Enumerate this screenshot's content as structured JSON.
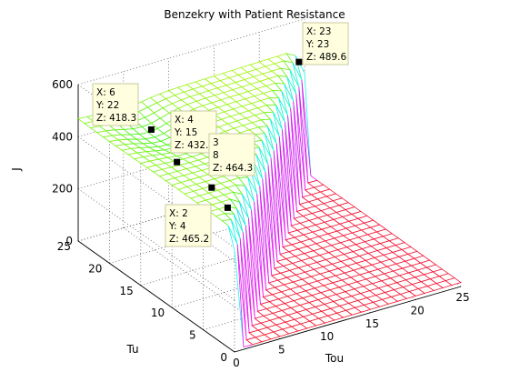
{
  "chart_data": {
    "type": "surface",
    "title": "Benzekry with Patient Resistance",
    "xlabel": "Tou",
    "ylabel": "Tu",
    "zlabel": "J",
    "xlim": [
      0,
      25
    ],
    "ylim": [
      0,
      25
    ],
    "zlim": [
      0,
      600
    ],
    "x_ticks": [
      "0",
      "5",
      "10",
      "15",
      "20",
      "25"
    ],
    "y_ticks": [
      "0",
      "5",
      "10",
      "15",
      "20",
      "25"
    ],
    "z_ticks": [
      "0",
      "200",
      "400",
      "600"
    ],
    "grid": true,
    "colormap": "hsv",
    "datatips": [
      {
        "x": 23,
        "y": 23,
        "z": 489.6,
        "lines": [
          "X: 23",
          "Y: 23",
          "Z: 489.6"
        ]
      },
      {
        "x": 6,
        "y": 22,
        "z": 418.3,
        "lines": [
          "X: 6",
          "Y: 22",
          "Z: 418.3"
        ]
      },
      {
        "x": 4,
        "y": 15,
        "z": 432.9,
        "lines": [
          "X: 4",
          "Y: 15",
          "Z: 432.9"
        ]
      },
      {
        "x": 3,
        "y": 8,
        "z": 464.3,
        "lines": [
          "3",
          "8",
          "Z: 464.3"
        ]
      },
      {
        "x": 2,
        "y": 4,
        "z": 465.2,
        "lines": [
          "X: 2",
          "Y: 4",
          "Z: 465.2"
        ]
      }
    ]
  }
}
